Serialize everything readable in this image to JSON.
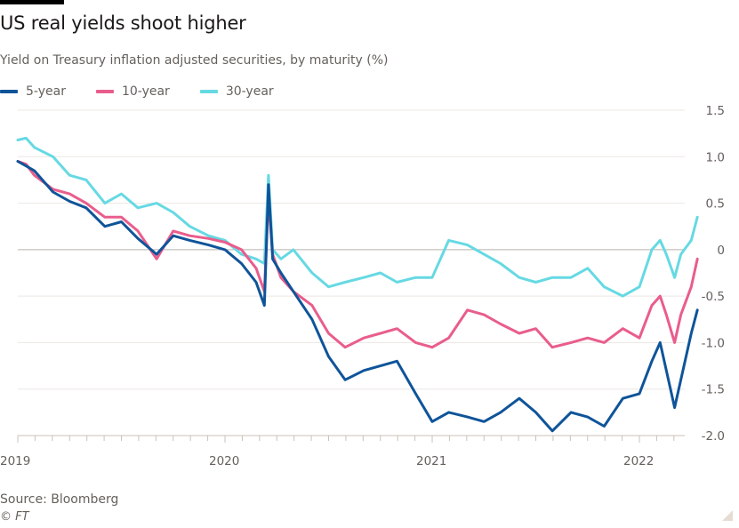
{
  "header": {
    "title": "US real yields shoot higher",
    "subtitle": "Yield on Treasury inflation adjusted securities, by maturity (%)"
  },
  "footer": {
    "source": "Source: Bloomberg",
    "copyright": "© FT"
  },
  "chart_data": {
    "type": "line",
    "title": "US real yields shoot higher",
    "subtitle": "Yield on Treasury inflation adjusted securities, by maturity (%)",
    "xlabel": "",
    "ylabel": "",
    "xlim": [
      2019.0,
      2022.3
    ],
    "ylim": [
      -2.0,
      1.5
    ],
    "y_ticks": [
      1.5,
      1.0,
      0.5,
      0,
      -0.5,
      -1.0,
      -1.5,
      -2.0
    ],
    "y_tick_labels": [
      "1.5",
      "1.0",
      "0.5",
      "0",
      "-0.5",
      "-1.0",
      "-1.5",
      "-2.0"
    ],
    "x_ticks": [
      2019,
      2020,
      2021,
      2022
    ],
    "x_tick_labels": [
      "2019",
      "2020",
      "2021",
      "2022"
    ],
    "y_axis_side": "right",
    "grid": true,
    "legend_position": "top-left",
    "x": [
      2019.0,
      2019.04,
      2019.08,
      2019.17,
      2019.25,
      2019.33,
      2019.42,
      2019.5,
      2019.58,
      2019.67,
      2019.75,
      2019.83,
      2019.92,
      2020.0,
      2020.08,
      2020.15,
      2020.19,
      2020.21,
      2020.23,
      2020.27,
      2020.33,
      2020.42,
      2020.5,
      2020.58,
      2020.67,
      2020.75,
      2020.83,
      2020.92,
      2021.0,
      2021.08,
      2021.17,
      2021.25,
      2021.33,
      2021.42,
      2021.5,
      2021.58,
      2021.67,
      2021.75,
      2021.83,
      2021.92,
      2022.0,
      2022.06,
      2022.1,
      2022.13,
      2022.17,
      2022.2,
      2022.25,
      2022.28
    ],
    "series": [
      {
        "name": "5-year",
        "color": "#0f5499",
        "values": [
          0.95,
          0.9,
          0.85,
          0.62,
          0.52,
          0.45,
          0.25,
          0.3,
          0.12,
          -0.05,
          0.15,
          0.1,
          0.05,
          0.0,
          -0.15,
          -0.35,
          -0.6,
          0.7,
          -0.1,
          -0.25,
          -0.45,
          -0.75,
          -1.15,
          -1.4,
          -1.3,
          -1.25,
          -1.2,
          -1.55,
          -1.85,
          -1.75,
          -1.8,
          -1.85,
          -1.75,
          -1.6,
          -1.75,
          -1.95,
          -1.75,
          -1.8,
          -1.9,
          -1.6,
          -1.55,
          -1.2,
          -1.0,
          -1.3,
          -1.7,
          -1.4,
          -0.9,
          -0.65
        ]
      },
      {
        "name": "10-year",
        "color": "#e95d8c",
        "values": [
          0.95,
          0.92,
          0.8,
          0.65,
          0.6,
          0.5,
          0.35,
          0.35,
          0.2,
          -0.1,
          0.2,
          0.15,
          0.12,
          0.08,
          0.0,
          -0.2,
          -0.45,
          0.55,
          -0.05,
          -0.3,
          -0.45,
          -0.6,
          -0.9,
          -1.05,
          -0.95,
          -0.9,
          -0.85,
          -1.0,
          -1.05,
          -0.95,
          -0.65,
          -0.7,
          -0.8,
          -0.9,
          -0.85,
          -1.05,
          -1.0,
          -0.95,
          -1.0,
          -0.85,
          -0.95,
          -0.6,
          -0.5,
          -0.7,
          -1.0,
          -0.7,
          -0.4,
          -0.1
        ]
      },
      {
        "name": "30-year",
        "color": "#66d9e3",
        "values": [
          1.18,
          1.2,
          1.1,
          1.0,
          0.8,
          0.75,
          0.5,
          0.6,
          0.45,
          0.5,
          0.4,
          0.25,
          0.15,
          0.1,
          -0.05,
          -0.1,
          -0.15,
          0.8,
          0.0,
          -0.1,
          0.0,
          -0.25,
          -0.4,
          -0.35,
          -0.3,
          -0.25,
          -0.35,
          -0.3,
          -0.3,
          0.1,
          0.05,
          -0.05,
          -0.15,
          -0.3,
          -0.35,
          -0.3,
          -0.3,
          -0.2,
          -0.4,
          -0.5,
          -0.4,
          0.0,
          0.1,
          -0.05,
          -0.3,
          -0.05,
          0.1,
          0.35
        ]
      }
    ]
  }
}
